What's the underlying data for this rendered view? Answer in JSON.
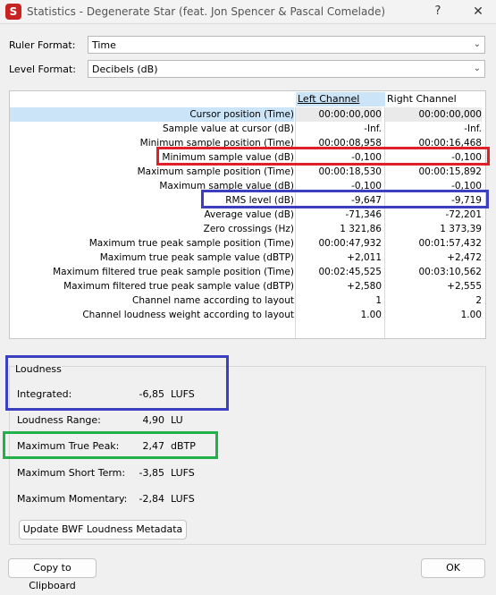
{
  "window": {
    "title": "Statistics - Degenerate Star (feat. Jon Spencer & Pascal Comelade)",
    "help": "?",
    "close": "✕",
    "app_icon": "S"
  },
  "form": {
    "ruler_label": "Ruler Format:",
    "ruler_value": "Time",
    "level_label": "Level Format:",
    "level_value": "Decibels (dB)"
  },
  "table": {
    "col_left": "Left Channel",
    "col_right": "Right Channel",
    "rows": [
      {
        "label": "Cursor position (Time)",
        "left": "00:00:00,000",
        "right": "00:00:00,000"
      },
      {
        "label": "Sample value at cursor (dB)",
        "left": "-Inf.",
        "right": "-Inf."
      },
      {
        "label": "Minimum sample position (Time)",
        "left": "00:00:08,958",
        "right": "00:00:16,468"
      },
      {
        "label": "Minimum sample value (dB)",
        "left": "-0,100",
        "right": "-0,100"
      },
      {
        "label": "Maximum sample position (Time)",
        "left": "00:00:18,530",
        "right": "00:00:15,892"
      },
      {
        "label": "Maximum sample value (dB)",
        "left": "-0,100",
        "right": "-0,100"
      },
      {
        "label": "RMS level (dB)",
        "left": "-9,647",
        "right": "-9,719"
      },
      {
        "label": "Average value (dB)",
        "left": "-71,346",
        "right": "-72,201"
      },
      {
        "label": "Zero crossings (Hz)",
        "left": "1 321,86",
        "right": "1 373,39"
      },
      {
        "label": "Maximum true peak sample position (Time)",
        "left": "00:00:47,932",
        "right": "00:01:57,432"
      },
      {
        "label": "Maximum true peak sample value (dBTP)",
        "left": "+2,011",
        "right": "+2,472"
      },
      {
        "label": "Maximum filtered true peak sample position (Time)",
        "left": "00:02:45,525",
        "right": "00:03:10,562"
      },
      {
        "label": "Maximum filtered true peak sample value (dBTP)",
        "left": "+2,580",
        "right": "+2,555"
      },
      {
        "label": "Channel name according to layout",
        "left": "1",
        "right": "2"
      },
      {
        "label": "Channel loudness weight according to layout",
        "left": "1.00",
        "right": "1.00"
      }
    ]
  },
  "loudness": {
    "title": "Loudness",
    "integrated": {
      "label": "Integrated:",
      "value": "-6,85",
      "unit": "LUFS"
    },
    "range": {
      "label": "Loudness Range:",
      "value": "4,90",
      "unit": "LU"
    },
    "max_true_peak": {
      "label": "Maximum True Peak:",
      "value": "2,47",
      "unit": "dBTP"
    },
    "max_short_term": {
      "label": "Maximum Short Term:",
      "value": "-3,85",
      "unit": "LUFS"
    },
    "max_momentary": {
      "label": "Maximum Momentary:",
      "value": "-2,84",
      "unit": "LUFS"
    },
    "update_button": "Update BWF Loudness Metadata"
  },
  "footer": {
    "copy_button": "Copy to Clipboard",
    "ok_button": "OK"
  },
  "colors": {
    "highlight_red": "#e01f2a",
    "highlight_blue": "#3b3fc0",
    "highlight_green": "#22b04a"
  }
}
